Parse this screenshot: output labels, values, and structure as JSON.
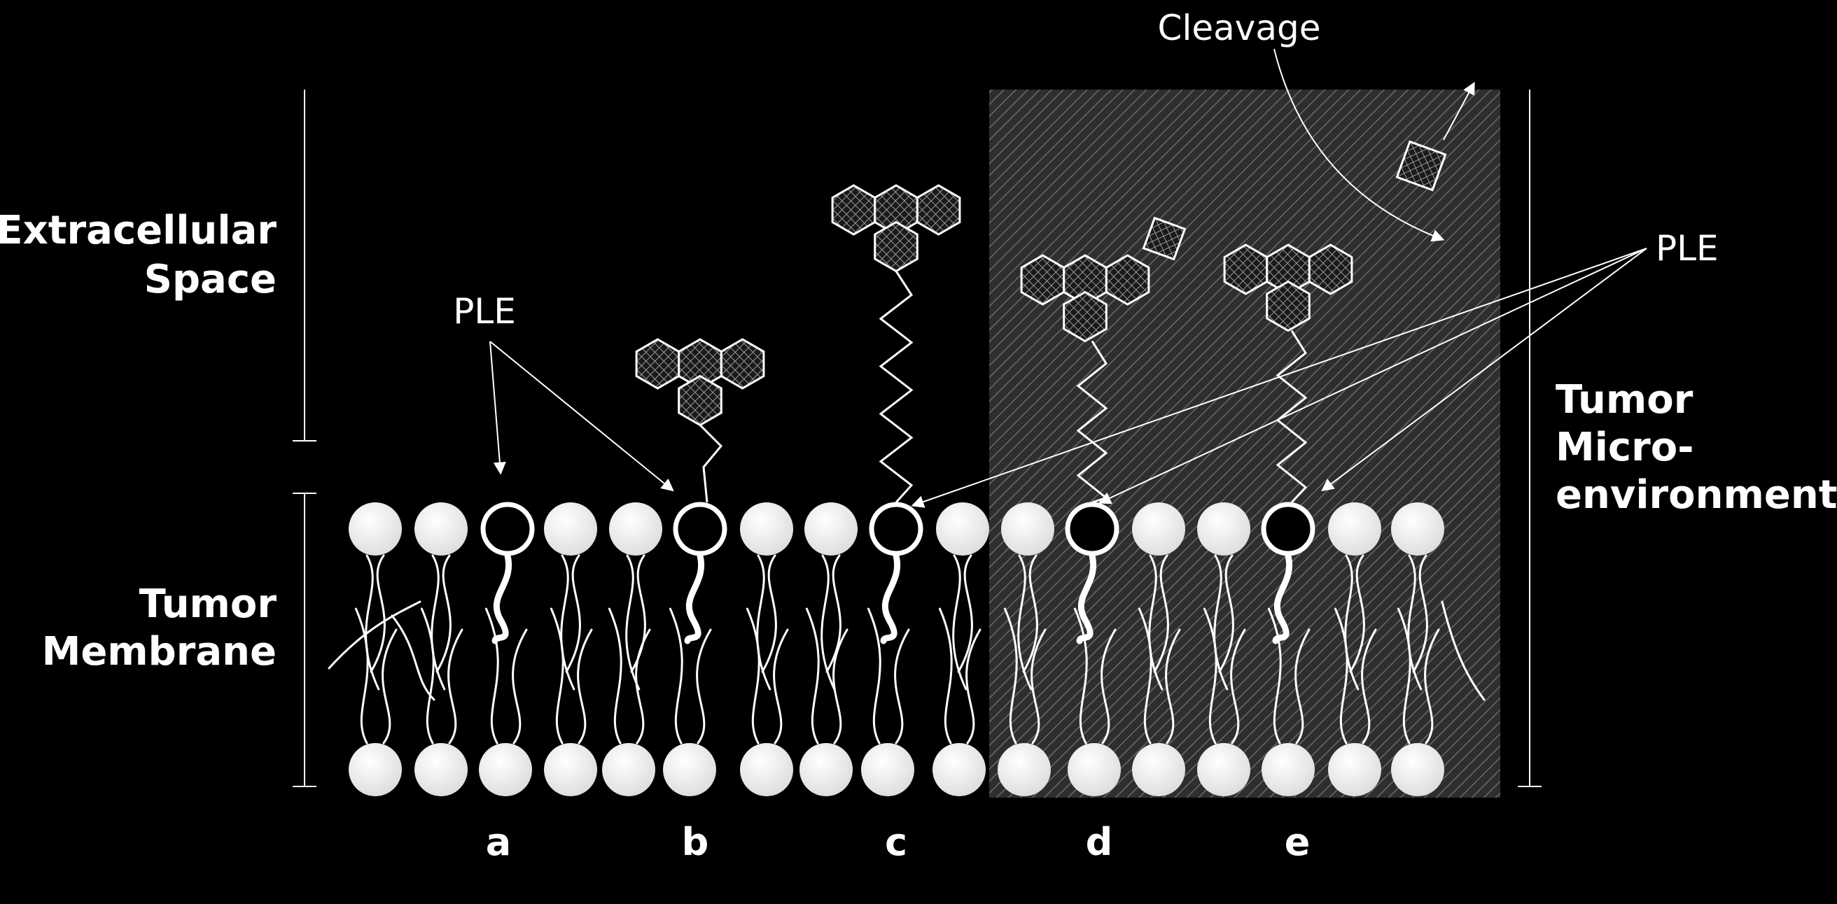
{
  "labels": {
    "extracellular_line1": "Extracellular",
    "extracellular_line2": "Space",
    "membrane_line1": "Tumor",
    "membrane_line2": "Membrane",
    "micro_line1": "Tumor",
    "micro_line2": "Micro-",
    "micro_line3": "environment",
    "ple_left": "PLE",
    "ple_right": "PLE",
    "cleavage": "Cleavage"
  },
  "positions": [
    "a",
    "b",
    "c",
    "d",
    "e"
  ],
  "colors": {
    "background": "#000000",
    "foreground": "#ffffff",
    "micro_region": "#3a3a3a"
  }
}
